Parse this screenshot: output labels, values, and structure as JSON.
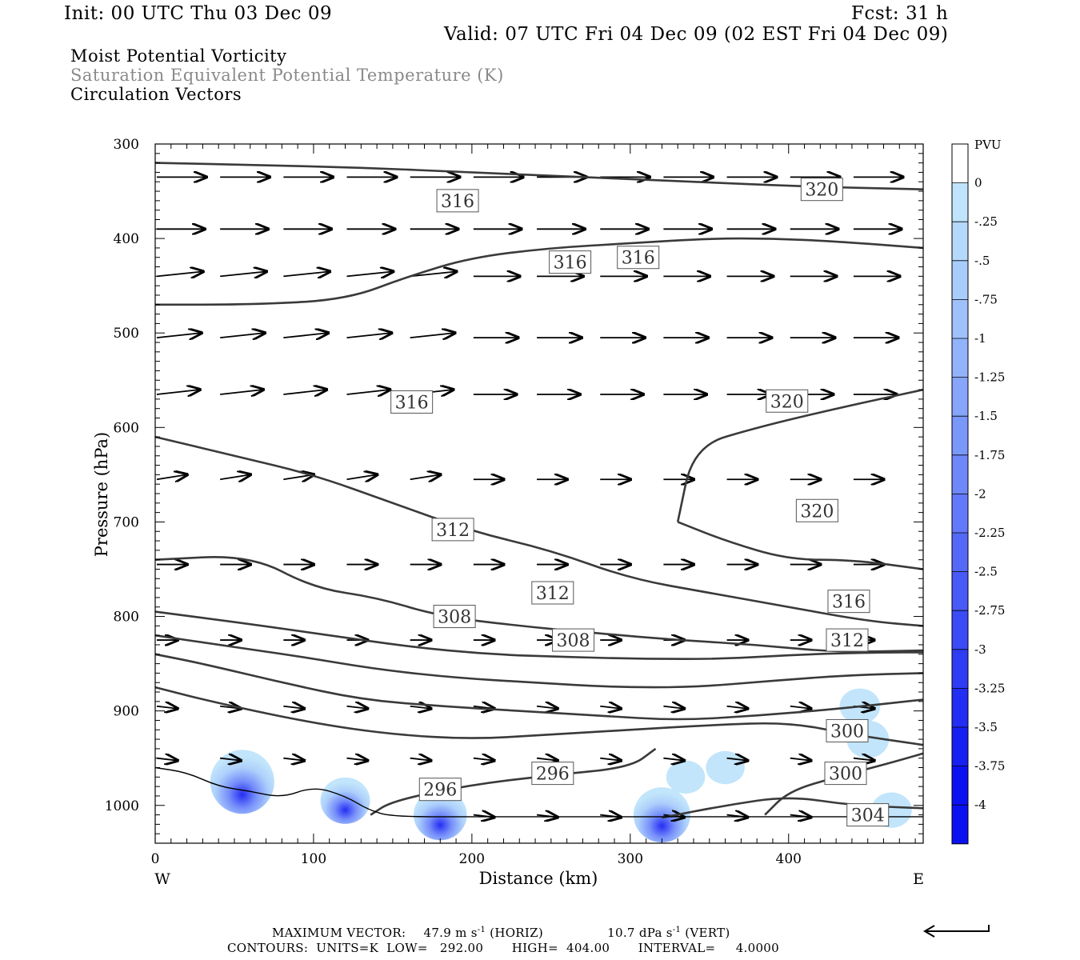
{
  "header": {
    "init": "Init: 00 UTC Thu 03 Dec 09",
    "fcst": "Fcst:   31 h",
    "valid": "Valid: 07 UTC Fri 04 Dec 09 (02 EST Fri 04 Dec 09)",
    "field1": "Moist Potential Vorticity",
    "field2": "Saturation Equivalent Potential Temperature (K)",
    "field3": "Circulation Vectors"
  },
  "footer": {
    "max_vector_label": "MAXIMUM VECTOR:",
    "horiz_value": "47.9 m s",
    "horiz_unit_tail": " (HORIZ)",
    "vert_value": "10.7 dPa s",
    "vert_unit_tail": " (VERT)",
    "exponent": "-1",
    "contours": "CONTOURS:  UNITS=K  LOW=   292.00       HIGH=  404.00       INTERVAL=     4.0000"
  },
  "chart_data": {
    "type": "cross-section",
    "xlabel": "Distance (km)",
    "ylabel": "Pressure (hPa)",
    "xlim": [
      0,
      485
    ],
    "ylim": [
      300,
      1040
    ],
    "x_ticks": [
      0,
      100,
      200,
      300,
      400
    ],
    "y_ticks": [
      300,
      400,
      500,
      600,
      700,
      800,
      900,
      1000
    ],
    "left_end_label": "W",
    "right_end_label": "E",
    "colorbar": {
      "unit": "PVU",
      "labels": [
        "0",
        "-.25",
        "-.5",
        "-.75",
        "-1",
        "-1.25",
        "-1.5",
        "-1.75",
        "-2",
        "-2.25",
        "-2.5",
        "-2.75",
        "-3",
        "-3.25",
        "-3.5",
        "-3.75",
        "-4"
      ],
      "colors": [
        "#ffffff",
        "#bfe4fb",
        "#b4d9fb",
        "#a9cdfb",
        "#9ec1fb",
        "#92b3fb",
        "#86a5fb",
        "#7a97fa",
        "#6e88fa",
        "#6279f9",
        "#5569f8",
        "#485af7",
        "#3b4bf6",
        "#2f3cf5",
        "#222ef4",
        "#1620f3",
        "#0a12f2"
      ]
    },
    "isentropes": [
      {
        "label": "304",
        "label_at": [
          450,
          1010
        ],
        "points": [
          [
            320,
            1013
          ],
          [
            360,
            1000
          ],
          [
            400,
            990
          ],
          [
            440,
            1000
          ],
          [
            485,
            1003
          ]
        ]
      },
      {
        "label": "300",
        "label_at": [
          436,
          966
        ],
        "points": [
          [
            385,
            1010
          ],
          [
            400,
            985
          ],
          [
            430,
            970
          ],
          [
            460,
            957
          ],
          [
            485,
            945
          ]
        ]
      },
      {
        "label": "296",
        "label_at": [
          180,
          983
        ],
        "points": [
          [
            136,
            1010
          ],
          [
            150,
            995
          ],
          [
            200,
            978
          ],
          [
            250,
            968
          ],
          [
            300,
            960
          ],
          [
            316,
            940
          ]
        ]
      },
      {
        "label": "296",
        "label_at": [
          251,
          966
        ],
        "points": []
      },
      {
        "label": "300",
        "label_at": [
          437,
          921
        ],
        "points": [
          [
            0,
            875
          ],
          [
            40,
            892
          ],
          [
            100,
            913
          ],
          [
            150,
            925
          ],
          [
            200,
            930
          ],
          [
            250,
            925
          ],
          [
            300,
            920
          ],
          [
            350,
            915
          ],
          [
            400,
            912
          ],
          [
            440,
            925
          ],
          [
            485,
            936
          ]
        ]
      },
      {
        "label": "308",
        "label_at": [
          189,
          800
        ],
        "points": [
          [
            0,
            840
          ],
          [
            30,
            850
          ],
          [
            80,
            870
          ],
          [
            130,
            888
          ],
          [
            180,
            895
          ],
          [
            230,
            900
          ],
          [
            280,
            905
          ],
          [
            330,
            910
          ],
          [
            380,
            905
          ],
          [
            430,
            898
          ],
          [
            485,
            888
          ]
        ]
      },
      {
        "label": "308",
        "label_at": [
          264,
          825
        ],
        "points": [
          [
            0,
            820
          ],
          [
            40,
            830
          ],
          [
            90,
            842
          ],
          [
            140,
            856
          ],
          [
            190,
            865
          ],
          [
            240,
            870
          ],
          [
            290,
            875
          ],
          [
            340,
            875
          ],
          [
            390,
            868
          ],
          [
            440,
            862
          ],
          [
            485,
            860
          ]
        ]
      },
      {
        "label": "312",
        "label_at": [
          437,
          825
        ],
        "points": [
          [
            0,
            795
          ],
          [
            60,
            808
          ],
          [
            110,
            820
          ],
          [
            160,
            832
          ],
          [
            210,
            840
          ],
          [
            260,
            843
          ],
          [
            310,
            845
          ],
          [
            360,
            845
          ],
          [
            410,
            840
          ],
          [
            460,
            838
          ],
          [
            485,
            838
          ]
        ]
      },
      {
        "label": "312",
        "label_at": [
          188,
          708
        ],
        "points": [
          [
            0,
            740
          ],
          [
            60,
            735
          ],
          [
            100,
            770
          ],
          [
            140,
            780
          ],
          [
            180,
            800
          ],
          [
            230,
            810
          ],
          [
            280,
            818
          ],
          [
            330,
            825
          ],
          [
            380,
            830
          ],
          [
            430,
            838
          ],
          [
            485,
            836
          ]
        ]
      },
      {
        "label": "312",
        "label_at": [
          251,
          775
        ],
        "points": []
      },
      {
        "label": "316",
        "label_at": [
          438,
          784
        ],
        "points": [
          [
            0,
            610
          ],
          [
            50,
            630
          ],
          [
            100,
            650
          ],
          [
            150,
            680
          ],
          [
            200,
            710
          ],
          [
            250,
            730
          ],
          [
            300,
            760
          ],
          [
            350,
            775
          ],
          [
            400,
            790
          ],
          [
            450,
            805
          ],
          [
            485,
            810
          ]
        ]
      },
      {
        "label": "316",
        "label_at": [
          162,
          573
        ],
        "points": [
          [
            0,
            470
          ],
          [
            60,
            470
          ],
          [
            120,
            465
          ],
          [
            160,
            440
          ],
          [
            200,
            420
          ],
          [
            250,
            410
          ],
          [
            300,
            405
          ],
          [
            350,
            400
          ],
          [
            390,
            400
          ],
          [
            430,
            403
          ],
          [
            485,
            410
          ]
        ]
      },
      {
        "label": "316",
        "label_at": [
          191,
          360
        ],
        "points": []
      },
      {
        "label": "316",
        "label_at": [
          262,
          425
        ],
        "points": []
      },
      {
        "label": "316",
        "label_at": [
          305,
          420
        ],
        "points": []
      },
      {
        "label": "320",
        "label_at": [
          399,
          572
        ],
        "points": [
          [
            330,
            700
          ],
          [
            340,
            620
          ],
          [
            380,
            600
          ],
          [
            430,
            580
          ],
          [
            485,
            560
          ]
        ]
      },
      {
        "label": "320",
        "label_at": [
          418,
          688
        ],
        "points": [
          [
            330,
            700
          ],
          [
            360,
            720
          ],
          [
            400,
            740
          ],
          [
            440,
            740
          ],
          [
            485,
            750
          ]
        ]
      },
      {
        "label": "320",
        "label_at": [
          421,
          348
        ],
        "points": [
          [
            0,
            320
          ],
          [
            60,
            322
          ],
          [
            130,
            325
          ],
          [
            200,
            330
          ],
          [
            270,
            335
          ],
          [
            340,
            340
          ],
          [
            410,
            345
          ],
          [
            485,
            348
          ]
        ]
      }
    ],
    "pv_regions": [
      {
        "center": [
          55,
          975
        ],
        "min_pv": -4.0
      },
      {
        "center": [
          120,
          995
        ],
        "min_pv": -2.0
      },
      {
        "center": [
          180,
          1010
        ],
        "min_pv": -2.5
      },
      {
        "center": [
          320,
          1010
        ],
        "min_pv": -3.0
      },
      {
        "center": [
          335,
          970
        ],
        "min_pv": -0.5
      },
      {
        "center": [
          360,
          960
        ],
        "min_pv": -0.5
      },
      {
        "center": [
          450,
          930
        ],
        "min_pv": -1.0
      },
      {
        "center": [
          445,
          895
        ],
        "min_pv": -0.75
      },
      {
        "center": [
          465,
          1005
        ],
        "min_pv": -0.75
      }
    ]
  }
}
